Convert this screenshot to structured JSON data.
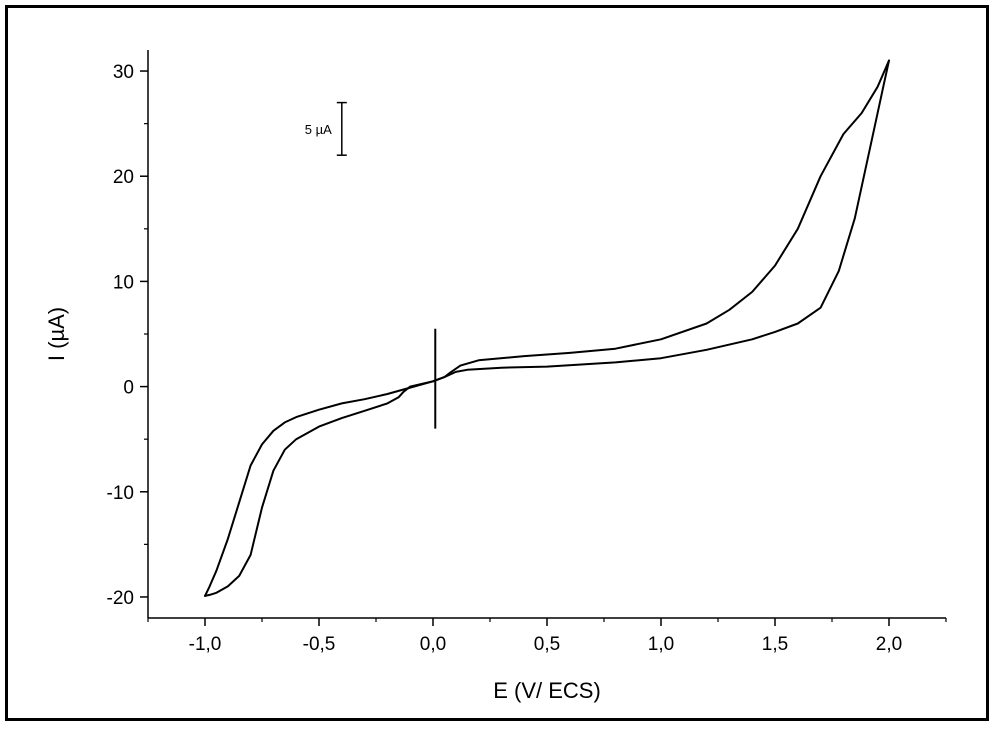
{
  "chart_data": {
    "type": "line",
    "title": "",
    "xlabel": "E (V/ ECS)",
    "ylabel": "I (µA)",
    "xlim": [
      -1.25,
      2.25
    ],
    "ylim": [
      -22,
      32
    ],
    "x_ticks": [
      -1.0,
      -0.5,
      0.0,
      0.5,
      1.0,
      1.5,
      2.0
    ],
    "x_tick_labels": [
      "-1,0",
      "-0,5",
      "0,0",
      "0,5",
      "1,0",
      "1,5",
      "2,0"
    ],
    "y_ticks": [
      -20,
      -10,
      0,
      10,
      20,
      30
    ],
    "y_tick_labels": [
      "-20",
      "-10",
      "0",
      "10",
      "20",
      "30"
    ],
    "grid": false,
    "scale_bar": {
      "label": "5 µA",
      "x": -0.4,
      "y_from": 22,
      "y_to": 27
    },
    "marker_line": {
      "x": 0.01,
      "y_from": -4,
      "y_to": 5.5
    },
    "series": [
      {
        "x": [
          0.0,
          0.05,
          0.08,
          0.1,
          0.15,
          0.3,
          0.5,
          0.8,
          1.0,
          1.2,
          1.4,
          1.5,
          1.6,
          1.7,
          1.78,
          1.85,
          1.9,
          1.95,
          1.98,
          2.0
        ],
        "y": [
          0.5,
          0.9,
          1.2,
          1.4,
          1.6,
          1.8,
          1.9,
          2.3,
          2.7,
          3.5,
          4.5,
          5.2,
          6.0,
          7.5,
          11,
          16,
          21,
          26,
          29,
          31
        ]
      },
      {
        "x": [
          2.0,
          1.95,
          1.88,
          1.8,
          1.7,
          1.6,
          1.5,
          1.4,
          1.3,
          1.2,
          1.0,
          0.8,
          0.6,
          0.4,
          0.2,
          0.12,
          0.08,
          0.05,
          0.0
        ],
        "y": [
          31,
          28.5,
          26,
          24,
          20,
          15,
          11.5,
          9,
          7.3,
          6,
          4.5,
          3.6,
          3.2,
          2.9,
          2.5,
          2.0,
          1.4,
          0.9,
          0.5
        ]
      },
      {
        "x": [
          0.0,
          -0.1,
          -0.13,
          -0.15,
          -0.2,
          -0.3,
          -0.4,
          -0.5,
          -0.6,
          -0.65,
          -0.7,
          -0.75,
          -0.8,
          -0.85,
          -0.9,
          -0.95,
          -0.98,
          -1.0
        ],
        "y": [
          0.5,
          0.0,
          -0.5,
          -1.0,
          -1.6,
          -2.3,
          -3.0,
          -3.8,
          -5.0,
          -6.0,
          -8.0,
          -11.5,
          -16.0,
          -18.0,
          -19.0,
          -19.6,
          -19.8,
          -19.9
        ]
      },
      {
        "x": [
          -1.0,
          -0.98,
          -0.95,
          -0.9,
          -0.85,
          -0.8,
          -0.75,
          -0.7,
          -0.65,
          -0.6,
          -0.5,
          -0.4,
          -0.3,
          -0.2,
          -0.1,
          0.0
        ],
        "y": [
          -19.9,
          -19.0,
          -17.5,
          -14.5,
          -11.0,
          -7.5,
          -5.5,
          -4.2,
          -3.4,
          -2.9,
          -2.2,
          -1.6,
          -1.2,
          -0.7,
          -0.1,
          0.5
        ]
      }
    ]
  }
}
